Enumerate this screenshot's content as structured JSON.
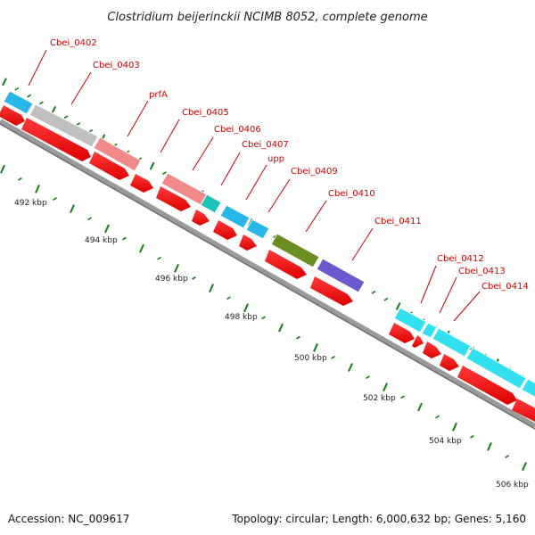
{
  "title": "Clostridium beijerinckii NCIMB 8052, complete genome",
  "footer": {
    "accession": "Accession: NC_009617",
    "topology": "Topology: circular; Length: 6,000,632 bp; Genes: 5,160"
  },
  "colors": {
    "cds": "#ff0000",
    "backbone": "#808080",
    "tick": "#1a7a1a",
    "label": "#cc0000"
  },
  "gene_labels": [
    {
      "text": "Cbei_0402"
    },
    {
      "text": "Cbei_0403"
    },
    {
      "text": "prfA"
    },
    {
      "text": "Cbei_0405"
    },
    {
      "text": "Cbei_0406"
    },
    {
      "text": "Cbei_0407"
    },
    {
      "text": "upp"
    },
    {
      "text": "Cbei_0409"
    },
    {
      "text": "Cbei_0410"
    },
    {
      "text": "Cbei_0411"
    },
    {
      "text": "Cbei_0412"
    },
    {
      "text": "Cbei_0413"
    },
    {
      "text": "Cbei_0414"
    }
  ],
  "kbp_labels": [
    "492 kbp",
    "494 kbp",
    "496 kbp",
    "498 kbp",
    "500 kbp",
    "502 kbp",
    "504 kbp",
    "506 kbp"
  ]
}
